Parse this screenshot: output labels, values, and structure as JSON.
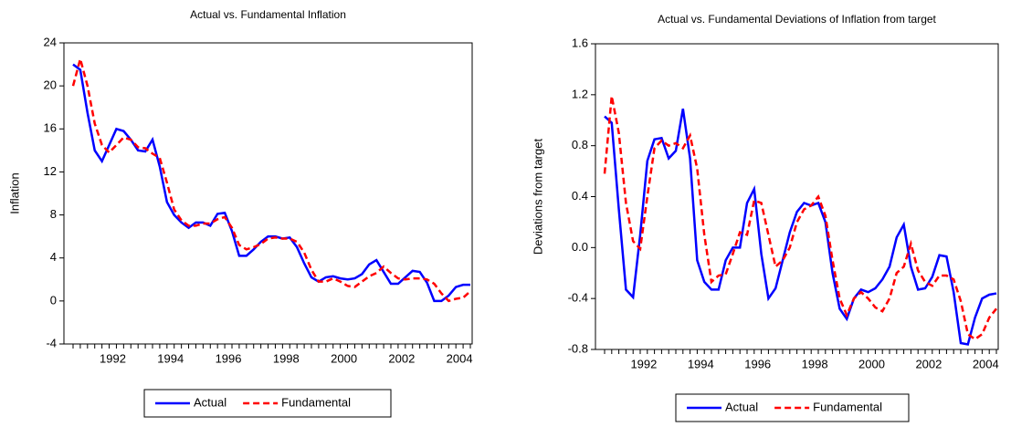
{
  "chart_data": [
    {
      "type": "line",
      "title": "Actual vs. Fundamental Inflation",
      "ylabel": "Inflation",
      "categories": [
        null,
        null,
        null,
        null,
        null,
        null,
        "1992",
        null,
        null,
        null,
        null,
        null,
        null,
        null,
        "1994",
        null,
        null,
        null,
        null,
        null,
        null,
        null,
        "1996",
        null,
        null,
        null,
        null,
        null,
        null,
        null,
        "1998",
        null,
        null,
        null,
        null,
        null,
        null,
        null,
        "2000",
        null,
        null,
        null,
        null,
        null,
        null,
        null,
        "2002",
        null,
        null,
        null,
        null,
        null,
        null,
        null,
        "2004",
        null
      ],
      "series": [
        {
          "name": "Actual",
          "color": "#0000ff",
          "dash": false,
          "values": [
            22,
            21.5,
            17.5,
            14,
            13,
            14.5,
            16,
            15.8,
            15,
            14,
            13.9,
            15,
            12.5,
            9.2,
            8,
            7.3,
            6.8,
            7.3,
            7.3,
            7,
            8.1,
            8.2,
            6.5,
            4.2,
            4.2,
            4.8,
            5.5,
            6,
            6,
            5.8,
            5.9,
            5,
            3.5,
            2.2,
            1.8,
            2.2,
            2.3,
            2.1,
            2,
            2.1,
            2.5,
            3.4,
            3.8,
            2.7,
            1.6,
            1.6,
            2.2,
            2.8,
            2.7,
            1.7,
            0,
            0,
            0.5,
            1.3,
            1.5,
            1.5
          ]
        },
        {
          "name": "Fundamental",
          "color": "#ff0000",
          "dash": true,
          "values": [
            20,
            22.5,
            20,
            16.5,
            14.5,
            13.8,
            14.5,
            15.2,
            15,
            14.3,
            14.2,
            13.7,
            13.3,
            11,
            8.5,
            7.5,
            7,
            7,
            7.2,
            7.2,
            7.6,
            7.8,
            6.8,
            5.2,
            4.8,
            5,
            5.3,
            5.8,
            5.9,
            5.8,
            5.8,
            5.5,
            4.5,
            2.9,
            1.8,
            1.8,
            2.1,
            1.8,
            1.4,
            1.3,
            1.8,
            2.3,
            2.6,
            3.2,
            2.6,
            2.1,
            2,
            2.1,
            2.1,
            2,
            1.6,
            0.7,
            0,
            0.2,
            0.3,
            0.9
          ]
        }
      ],
      "ylim": [
        -4,
        24
      ],
      "yticks": [
        -4,
        0,
        4,
        8,
        12,
        16,
        20,
        24
      ],
      "legend": "bottom"
    },
    {
      "type": "line",
      "title": "Actual vs. Fundamental Deviations of Inflation from target",
      "ylabel": "Deviations from target",
      "categories": [
        null,
        null,
        null,
        null,
        null,
        null,
        "1992",
        null,
        null,
        null,
        null,
        null,
        null,
        null,
        "1994",
        null,
        null,
        null,
        null,
        null,
        null,
        null,
        "1996",
        null,
        null,
        null,
        null,
        null,
        null,
        null,
        "1998",
        null,
        null,
        null,
        null,
        null,
        null,
        null,
        "2000",
        null,
        null,
        null,
        null,
        null,
        null,
        null,
        "2002",
        null,
        null,
        null,
        null,
        null,
        null,
        null,
        "2004",
        null
      ],
      "series": [
        {
          "name": "Actual",
          "color": "#0000ff",
          "dash": false,
          "values": [
            1.03,
            0.98,
            0.3,
            -0.33,
            -0.39,
            0.1,
            0.68,
            0.85,
            0.86,
            0.7,
            0.76,
            1.09,
            0.7,
            -0.1,
            -0.27,
            -0.33,
            -0.33,
            -0.1,
            0,
            0,
            0.35,
            0.46,
            -0.05,
            -0.4,
            -0.32,
            -0.1,
            0.12,
            0.28,
            0.35,
            0.33,
            0.35,
            0.2,
            -0.2,
            -0.48,
            -0.56,
            -0.4,
            -0.33,
            -0.35,
            -0.32,
            -0.25,
            -0.15,
            0.08,
            0.18,
            -0.15,
            -0.33,
            -0.32,
            -0.23,
            -0.06,
            -0.07,
            -0.35,
            -0.75,
            -0.76,
            -0.55,
            -0.4,
            -0.37,
            -0.36
          ]
        },
        {
          "name": "Fundamental",
          "color": "#ff0000",
          "dash": true,
          "values": [
            0.58,
            1.19,
            0.9,
            0.35,
            0.05,
            -0.01,
            0.4,
            0.78,
            0.84,
            0.8,
            0.82,
            0.78,
            0.88,
            0.62,
            0.1,
            -0.27,
            -0.22,
            -0.21,
            -0.05,
            0.12,
            0.1,
            0.37,
            0.35,
            0.1,
            -0.15,
            -0.1,
            0,
            0.2,
            0.3,
            0.33,
            0.4,
            0.25,
            -0.1,
            -0.4,
            -0.53,
            -0.4,
            -0.35,
            -0.4,
            -0.47,
            -0.5,
            -0.4,
            -0.2,
            -0.15,
            0.03,
            -0.18,
            -0.27,
            -0.3,
            -0.22,
            -0.22,
            -0.25,
            -0.42,
            -0.68,
            -0.72,
            -0.68,
            -0.55,
            -0.48
          ]
        }
      ],
      "ylim": [
        -0.8,
        1.6
      ],
      "yticks": [
        -0.8,
        -0.4,
        {
          "value": 0,
          "label": "0.0"
        },
        0.4,
        0.8,
        1.2,
        1.6
      ],
      "legend": "bottom"
    }
  ]
}
